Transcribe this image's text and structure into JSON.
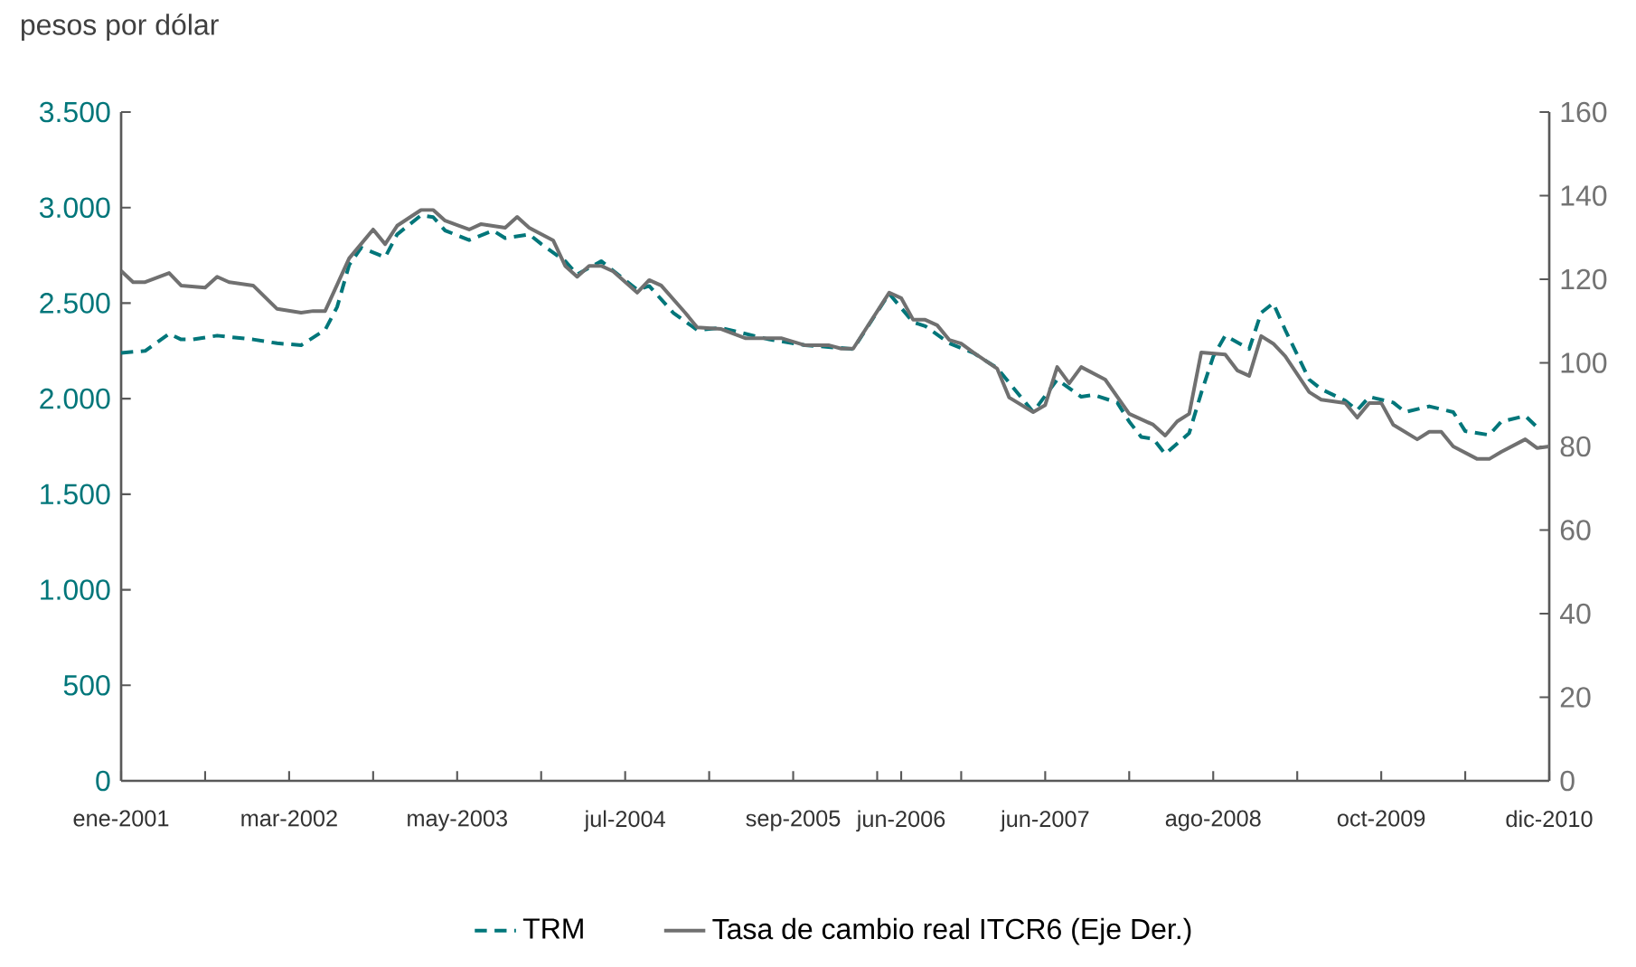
{
  "chart_data": {
    "type": "line",
    "ylabel": "pesos por dólar",
    "xlim": [
      "2001-01",
      "2010-12"
    ],
    "xticks": [
      {
        "value": "2001-01",
        "label": "ene-2001"
      },
      {
        "value": "2001-08",
        "label": null
      },
      {
        "value": "2002-03",
        "label": "mar-2002"
      },
      {
        "value": "2002-10",
        "label": null
      },
      {
        "value": "2003-05",
        "label": "may-2003"
      },
      {
        "value": "2003-12",
        "label": null
      },
      {
        "value": "2004-07",
        "label": "jul-2004"
      },
      {
        "value": "2005-02",
        "label": null
      },
      {
        "value": "2005-09",
        "label": "sep-2005"
      },
      {
        "value": "2006-04",
        "label": null
      },
      {
        "value": "2006-06",
        "label": "jun-2006"
      },
      {
        "value": "2006-11",
        "label": null
      },
      {
        "value": "2007-06",
        "label": "jun-2007"
      },
      {
        "value": "2008-01",
        "label": null
      },
      {
        "value": "2008-08",
        "label": "ago-2008"
      },
      {
        "value": "2009-03",
        "label": null
      },
      {
        "value": "2009-10",
        "label": "oct-2009"
      },
      {
        "value": "2010-05",
        "label": null
      },
      {
        "value": "2010-12",
        "label": "dic-2010"
      }
    ],
    "ylim": [
      0,
      3500
    ],
    "yticks": [
      0,
      500,
      {
        "value": 1000,
        "label": "1.000"
      },
      {
        "value": 1500,
        "label": "1.500"
      },
      {
        "value": 2000,
        "label": "2.000"
      },
      {
        "value": 2500,
        "label": "2.500"
      },
      {
        "value": 3000,
        "label": "3.000"
      },
      {
        "value": 3500,
        "label": "3.500"
      }
    ],
    "y2lim": [
      0,
      160
    ],
    "y2ticks": [
      0,
      20,
      40,
      60,
      80,
      100,
      120,
      140,
      160
    ],
    "legend": "bottom",
    "series": [
      {
        "name": "TRM",
        "color": "#00767a",
        "line_style": "dashed",
        "axis": "y",
        "x": [
          "2001-01",
          "2001-03",
          "2001-05",
          "2001-06",
          "2001-07",
          "2001-09",
          "2001-12",
          "2002-02",
          "2002-04",
          "2002-06",
          "2002-07",
          "2002-08",
          "2002-09",
          "2002-11",
          "2002-12",
          "2003-02",
          "2003-03",
          "2003-04",
          "2003-06",
          "2003-08",
          "2003-09",
          "2003-11",
          "2003-12",
          "2004-02",
          "2004-03",
          "2004-05",
          "2004-06",
          "2004-08",
          "2004-09",
          "2004-11",
          "2005-01",
          "2005-03",
          "2005-07",
          "2005-10",
          "2006-02",
          "2006-05",
          "2006-07",
          "2006-08",
          "2006-10",
          "2006-12",
          "2007-02",
          "2007-05",
          "2007-07",
          "2007-09",
          "2007-10",
          "2007-12",
          "2008-01",
          "2008-02",
          "2008-03",
          "2008-04",
          "2008-06",
          "2008-07",
          "2008-08",
          "2008-09",
          "2008-11",
          "2008-12",
          "2009-01",
          "2009-02",
          "2009-04",
          "2009-05",
          "2009-07",
          "2009-08",
          "2009-09",
          "2009-11",
          "2009-12",
          "2010-02",
          "2010-04",
          "2010-05",
          "2010-07",
          "2010-08",
          "2010-10",
          "2010-11"
        ],
        "values": [
          2240,
          2250,
          2340,
          2310,
          2310,
          2330,
          2310,
          2290,
          2280,
          2360,
          2480,
          2700,
          2790,
          2740,
          2860,
          2960,
          2950,
          2880,
          2830,
          2880,
          2840,
          2860,
          2810,
          2720,
          2650,
          2720,
          2670,
          2570,
          2590,
          2450,
          2360,
          2370,
          2310,
          2280,
          2260,
          2550,
          2400,
          2380,
          2290,
          2240,
          2160,
          1930,
          2100,
          2010,
          2020,
          1980,
          1880,
          1800,
          1790,
          1710,
          1820,
          2030,
          2220,
          2330,
          2260,
          2450,
          2500,
          2360,
          2100,
          2050,
          1990,
          1940,
          2010,
          1980,
          1930,
          1960,
          1930,
          1830,
          1810,
          1880,
          1910,
          1850
        ]
      },
      {
        "name": "Tasa de cambio real ITCR6 (Eje Der.)",
        "color": "#707070",
        "line_style": "solid",
        "axis": "y2",
        "x": [
          "2001-01",
          "2001-02",
          "2001-03",
          "2001-05",
          "2001-06",
          "2001-08",
          "2001-09",
          "2001-10",
          "2001-12",
          "2002-02",
          "2002-04",
          "2002-05",
          "2002-06",
          "2002-08",
          "2002-10",
          "2002-11",
          "2002-12",
          "2003-02",
          "2003-03",
          "2003-04",
          "2003-06",
          "2003-07",
          "2003-09",
          "2003-10",
          "2003-11",
          "2004-01",
          "2004-02",
          "2004-03",
          "2004-04",
          "2004-05",
          "2004-06",
          "2004-08",
          "2004-09",
          "2004-10",
          "2004-12",
          "2005-01",
          "2005-03",
          "2005-05",
          "2005-08",
          "2005-10",
          "2005-12",
          "2006-01",
          "2006-02",
          "2006-05",
          "2006-06",
          "2006-07",
          "2006-08",
          "2006-09",
          "2006-10",
          "2006-11",
          "2006-12",
          "2007-02",
          "2007-03",
          "2007-05",
          "2007-06",
          "2007-07",
          "2007-08",
          "2007-09",
          "2007-11",
          "2008-01",
          "2008-03",
          "2008-04",
          "2008-05",
          "2008-06",
          "2008-07",
          "2008-09",
          "2008-10",
          "2008-11",
          "2008-12",
          "2009-01",
          "2009-02",
          "2009-04",
          "2009-05",
          "2009-07",
          "2009-08",
          "2009-09",
          "2009-10",
          "2009-11",
          "2010-01",
          "2010-02",
          "2010-03",
          "2010-04",
          "2010-06",
          "2010-07",
          "2010-08",
          "2010-10",
          "2010-11",
          "2010-12"
        ],
        "values": [
          122,
          119.3,
          119.3,
          121.5,
          118.5,
          118,
          120.6,
          119.3,
          118.5,
          112.9,
          112,
          112.4,
          112.4,
          125,
          131.9,
          128.4,
          132.8,
          136.6,
          136.6,
          134,
          131.9,
          133.2,
          132.3,
          134.9,
          132.3,
          129.3,
          123.2,
          120.6,
          123.2,
          123.2,
          121.9,
          116.8,
          119.8,
          118.5,
          112,
          108.5,
          108.1,
          105.9,
          105.9,
          104.2,
          104.2,
          103.4,
          103.4,
          116.8,
          115.5,
          110.3,
          110.3,
          109,
          105.5,
          104.6,
          102.5,
          98.6,
          91.7,
          88.2,
          89.9,
          99,
          95.1,
          99,
          96,
          87.8,
          85.2,
          82.6,
          86,
          87.8,
          102.5,
          102,
          98.2,
          96.9,
          106.4,
          104.6,
          101.6,
          93,
          91.2,
          90.4,
          86.9,
          90.4,
          90.4,
          85.2,
          81.7,
          83.5,
          83.5,
          80,
          77,
          77,
          78.7,
          81.7,
          79.6,
          80
        ]
      }
    ]
  }
}
